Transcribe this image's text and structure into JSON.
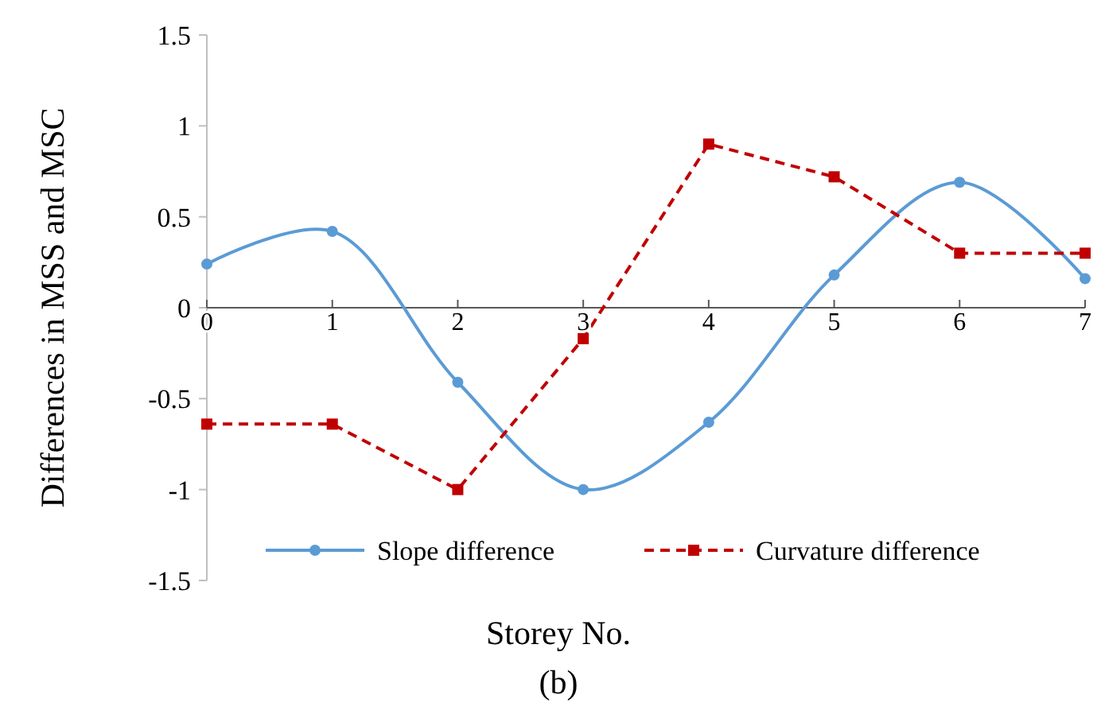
{
  "chart_data": {
    "type": "line",
    "xlabel": "Storey No.",
    "ylabel": "Differences in MSS and MSC",
    "annotations": [
      "(b)"
    ],
    "categories": [
      "0",
      "1",
      "2",
      "3",
      "4",
      "5",
      "6",
      "7"
    ],
    "ylim": [
      -1.5,
      1.5
    ],
    "yticks": [
      {
        "value": -1.5,
        "label": "-1.5"
      },
      {
        "value": -1,
        "label": "-1"
      },
      {
        "value": -0.5,
        "label": "-0.5"
      },
      0,
      0.5,
      1,
      1.5
    ],
    "grid": false,
    "legend": "bottom",
    "series": [
      {
        "name": "Slope difference",
        "color": "#5b9bd5",
        "marker": "circle",
        "line_style": "solid",
        "values": [
          0.24,
          0.42,
          -0.41,
          -1.0,
          -0.63,
          0.18,
          0.69,
          0.16
        ]
      },
      {
        "name": "Curvature difference",
        "color": "#c00000",
        "marker": "square",
        "line_style": "dashed",
        "values": [
          -0.64,
          -0.64,
          -1.0,
          -0.17,
          0.9,
          0.72,
          0.3,
          0.3
        ]
      }
    ]
  }
}
